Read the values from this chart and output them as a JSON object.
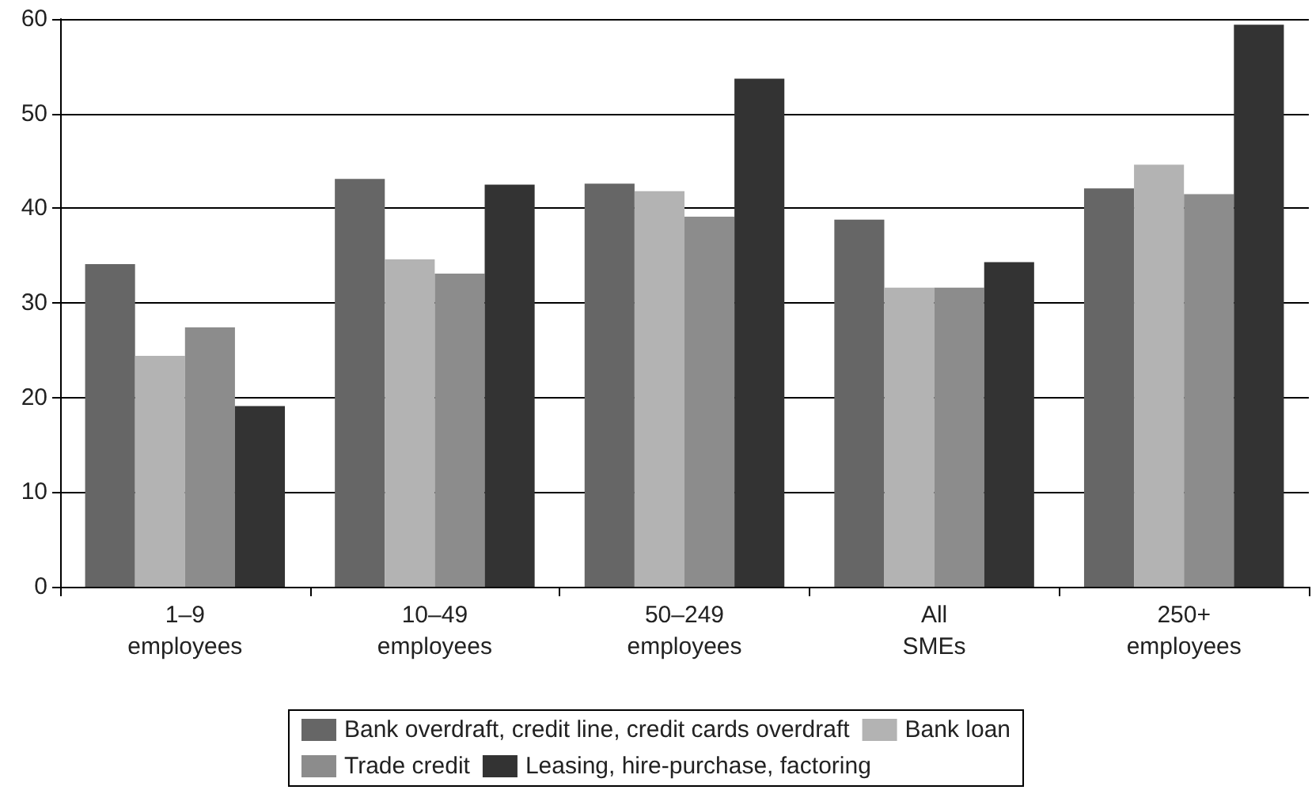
{
  "chart_data": {
    "type": "bar",
    "categories": [
      "1–9 employees",
      "10–49 employees",
      "50–249 employees",
      "All SMEs",
      "250+ employees"
    ],
    "series": [
      {
        "name": "Bank overdraft, credit line, credit cards overdraft",
        "color": "#666666",
        "values": [
          34.1,
          43.1,
          42.6,
          38.8,
          42.1
        ]
      },
      {
        "name": "Bank loan",
        "color": "#b3b3b3",
        "values": [
          24.4,
          34.6,
          41.8,
          31.6,
          44.6
        ]
      },
      {
        "name": "Trade credit",
        "color": "#8c8c8c",
        "values": [
          27.4,
          33.1,
          39.1,
          31.6,
          41.5
        ]
      },
      {
        "name": "Leasing, hire-purchase, factoring",
        "color": "#333333",
        "values": [
          19.1,
          42.5,
          53.7,
          34.3,
          59.4
        ]
      }
    ],
    "ylim": [
      0,
      60
    ],
    "yticks": [
      0,
      10,
      20,
      30,
      40,
      50,
      60
    ],
    "grid": "y",
    "legend": "bottom"
  }
}
